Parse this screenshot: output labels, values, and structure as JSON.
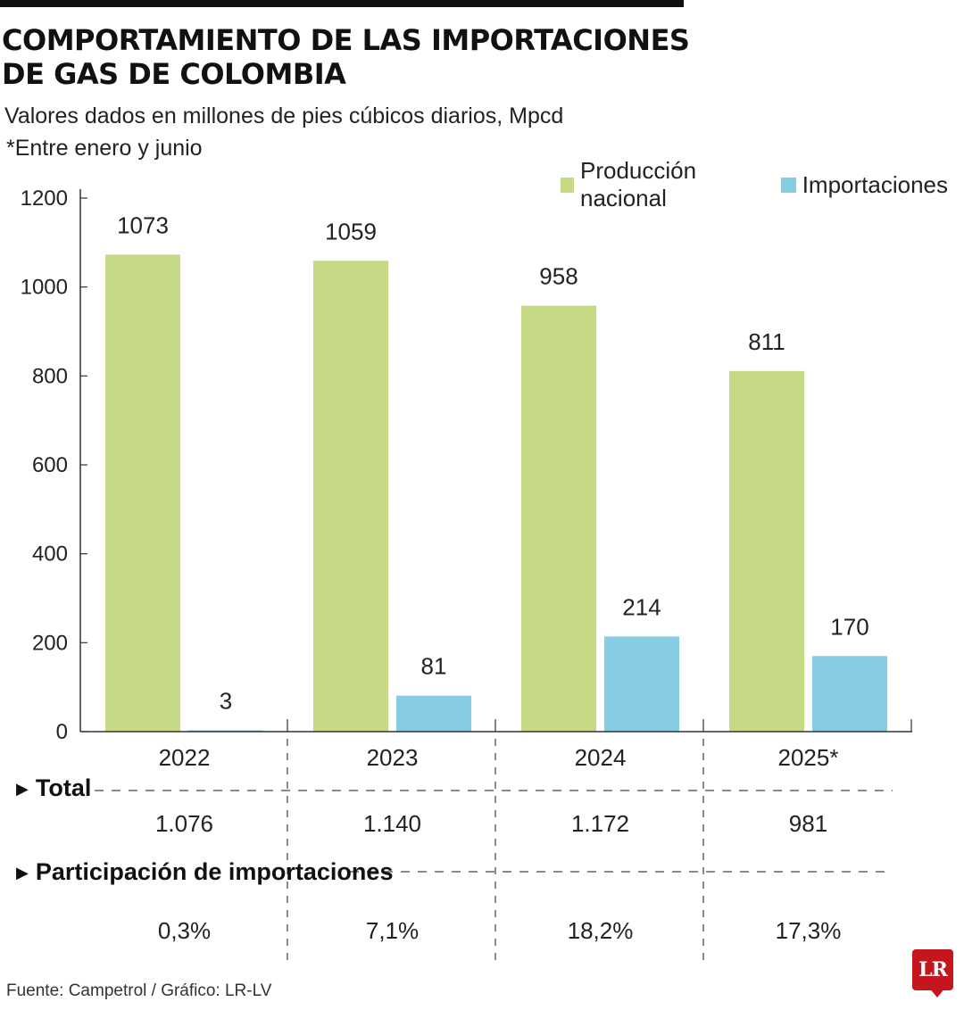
{
  "title_lines": [
    "COMPORTAMIENTO DE LAS IMPORTACIONES",
    "DE GAS DE COLOMBIA"
  ],
  "subtitle": "Valores dados en millones de pies cúbicos diarios, Mpcd",
  "note": "*Entre enero y junio",
  "colors": {
    "produccion": "#c6da86",
    "importaciones": "#86cde3",
    "axis": "#333333"
  },
  "chart_data": {
    "type": "bar",
    "categories": [
      "2022",
      "2023",
      "2024",
      "2025*"
    ],
    "series": [
      {
        "name": "Producción nacional",
        "values": [
          1073,
          1059,
          958,
          811
        ],
        "labels": [
          "1073",
          "1059",
          "958",
          "811"
        ]
      },
      {
        "name": "Importaciones",
        "values": [
          3,
          81,
          214,
          170
        ],
        "labels": [
          "3",
          "81",
          "214",
          "170"
        ]
      }
    ],
    "ylim": [
      0,
      1200
    ],
    "yticks": [
      0,
      200,
      400,
      600,
      800,
      1000,
      1200
    ],
    "ytick_labels": [
      "0",
      "200",
      "400",
      "600",
      "800",
      "1000",
      "1200"
    ],
    "legend": "top-right",
    "grid": false
  },
  "table": {
    "total_label": "Total",
    "total_values": [
      "1.076",
      "1.140",
      "1.172",
      "981"
    ],
    "share_label": "Participación de importaciones",
    "share_values": [
      "0,3%",
      "7,1%",
      "18,2%",
      "17,3%"
    ]
  },
  "source": "Fuente: Campetrol / Gráfico: LR-LV",
  "logo_text": "LR"
}
